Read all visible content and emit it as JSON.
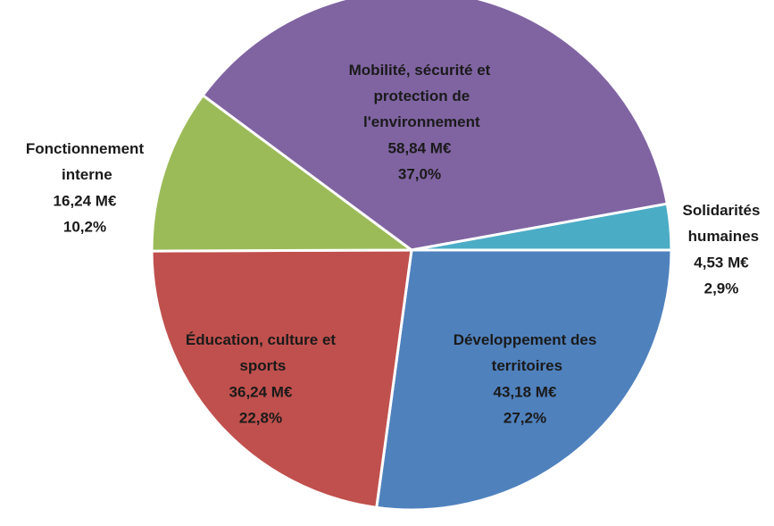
{
  "chart_data": {
    "type": "pie",
    "categories": [
      "Développement des territoires",
      "Éducation, culture et sports",
      "Fonctionnement interne",
      "Mobilité, sécurité et protection de l'environnement",
      "Solidarités humaines"
    ],
    "values": [
      43.18,
      36.24,
      16.24,
      58.84,
      4.53
    ],
    "value_labels": [
      "43,18 M€",
      "36,24 M€",
      "16,24 M€",
      "58,84 M€",
      "4,53 M€"
    ],
    "percentages": [
      27.2,
      22.8,
      10.2,
      37.0,
      2.9
    ],
    "percentage_labels": [
      "27,2%",
      "22,8%",
      "10,2%",
      "37,0%",
      "2,9%"
    ],
    "colors": [
      "#4f81bd",
      "#c0504d",
      "#9bbb59",
      "#8064a2",
      "#4bacc6"
    ]
  }
}
